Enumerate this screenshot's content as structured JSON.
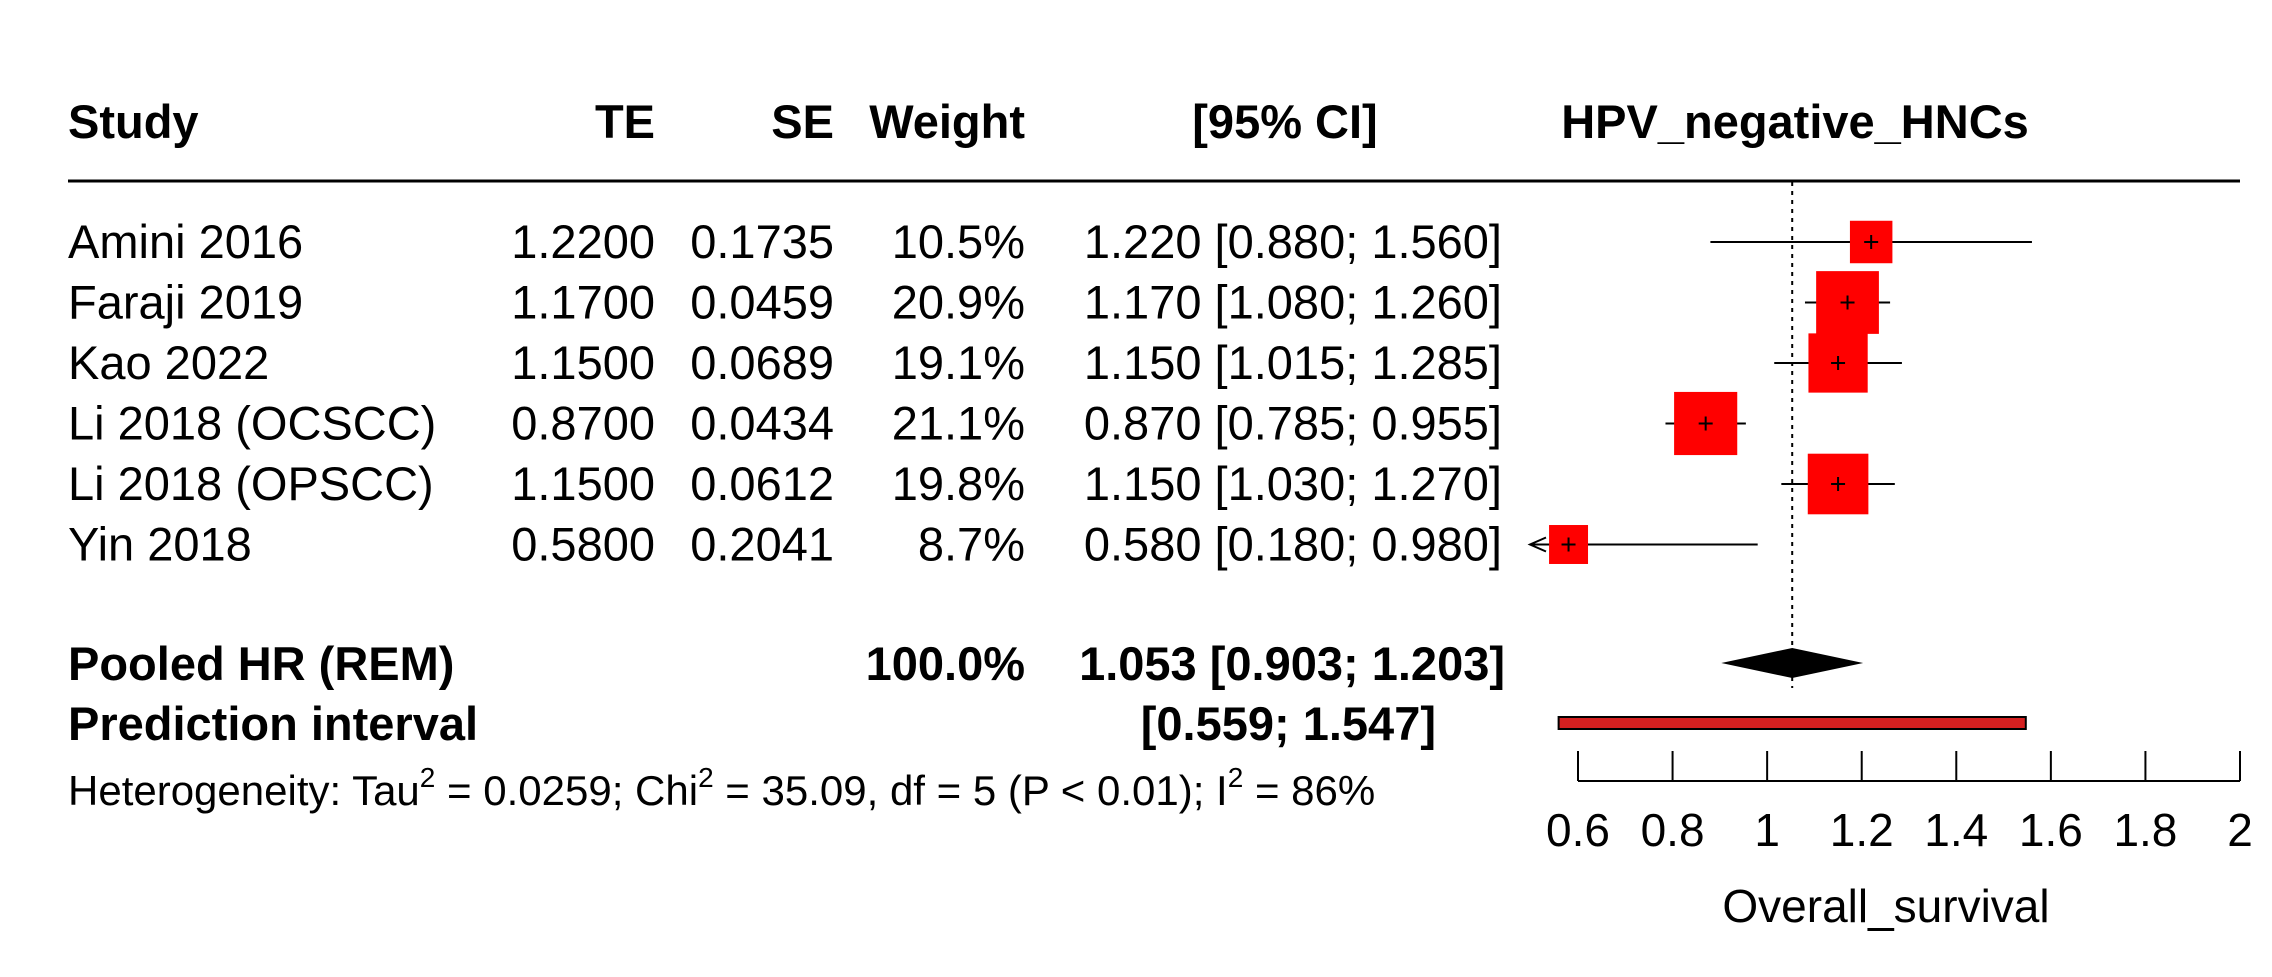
{
  "headers": {
    "study": "Study",
    "te": "TE",
    "se": "SE",
    "weight": "Weight",
    "ci": "[95% CI]",
    "plot_title": "HPV_negative_HNCs"
  },
  "chart_data": {
    "type": "forest",
    "title": "HPV_negative_HNCs",
    "xlabel": "Overall_survival",
    "xlim": [
      0.6,
      2
    ],
    "xticks": [
      "0.6",
      "0.8",
      "1",
      "1.2",
      "1.4",
      "1.6",
      "1.8",
      "2"
    ],
    "reference_line": 1.053,
    "studies": [
      {
        "name": "Amini 2016",
        "te": "1.2200",
        "se": "0.1735",
        "weight": "10.5%",
        "ci_text": "1.220 [0.880; 1.560]",
        "est": 1.22,
        "lo": 0.88,
        "hi": 1.56,
        "w": 10.5
      },
      {
        "name": "Faraji 2019",
        "te": "1.1700",
        "se": "0.0459",
        "weight": "20.9%",
        "ci_text": "1.170 [1.080; 1.260]",
        "est": 1.17,
        "lo": 1.08,
        "hi": 1.26,
        "w": 20.9
      },
      {
        "name": "Kao 2022",
        "te": "1.1500",
        "se": "0.0689",
        "weight": "19.1%",
        "ci_text": "1.150 [1.015; 1.285]",
        "est": 1.15,
        "lo": 1.015,
        "hi": 1.285,
        "w": 19.1
      },
      {
        "name": "Li 2018 (OCSCC)",
        "te": "0.8700",
        "se": "0.0434",
        "weight": "21.1%",
        "ci_text": "0.870 [0.785; 0.955]",
        "est": 0.87,
        "lo": 0.785,
        "hi": 0.955,
        "w": 21.1
      },
      {
        "name": "Li 2018 (OPSCC)",
        "te": "1.1500",
        "se": "0.0612",
        "weight": "19.8%",
        "ci_text": "1.150 [1.030; 1.270]",
        "est": 1.15,
        "lo": 1.03,
        "hi": 1.27,
        "w": 19.8
      },
      {
        "name": "Yin 2018",
        "te": "0.5800",
        "se": "0.2041",
        "weight": "8.7%",
        "ci_text": "0.580 [0.180; 0.980]",
        "est": 0.58,
        "lo": 0.18,
        "hi": 0.98,
        "w": 8.7
      }
    ],
    "pooled": {
      "label": "Pooled HR (REM)",
      "weight": "100.0%",
      "ci_text": "1.053 [0.903; 1.203]",
      "est": 1.053,
      "lo": 0.903,
      "hi": 1.203
    },
    "prediction": {
      "label": "Prediction interval",
      "ci_text": "[0.559; 1.547]",
      "lo": 0.559,
      "hi": 1.547
    },
    "heterogeneity": {
      "prefix": "Heterogeneity: Tau",
      "sup1": "2",
      "mid1": " = 0.0259; Chi",
      "sup2": "2",
      "mid2": " = 35.09, df = 5 (P < 0.01); I",
      "sup3": "2",
      "end": " = 86%"
    },
    "colors": {
      "box": "#ff0000",
      "line": "#000000",
      "diamond": "#000000",
      "prediction": "#d62020"
    }
  }
}
